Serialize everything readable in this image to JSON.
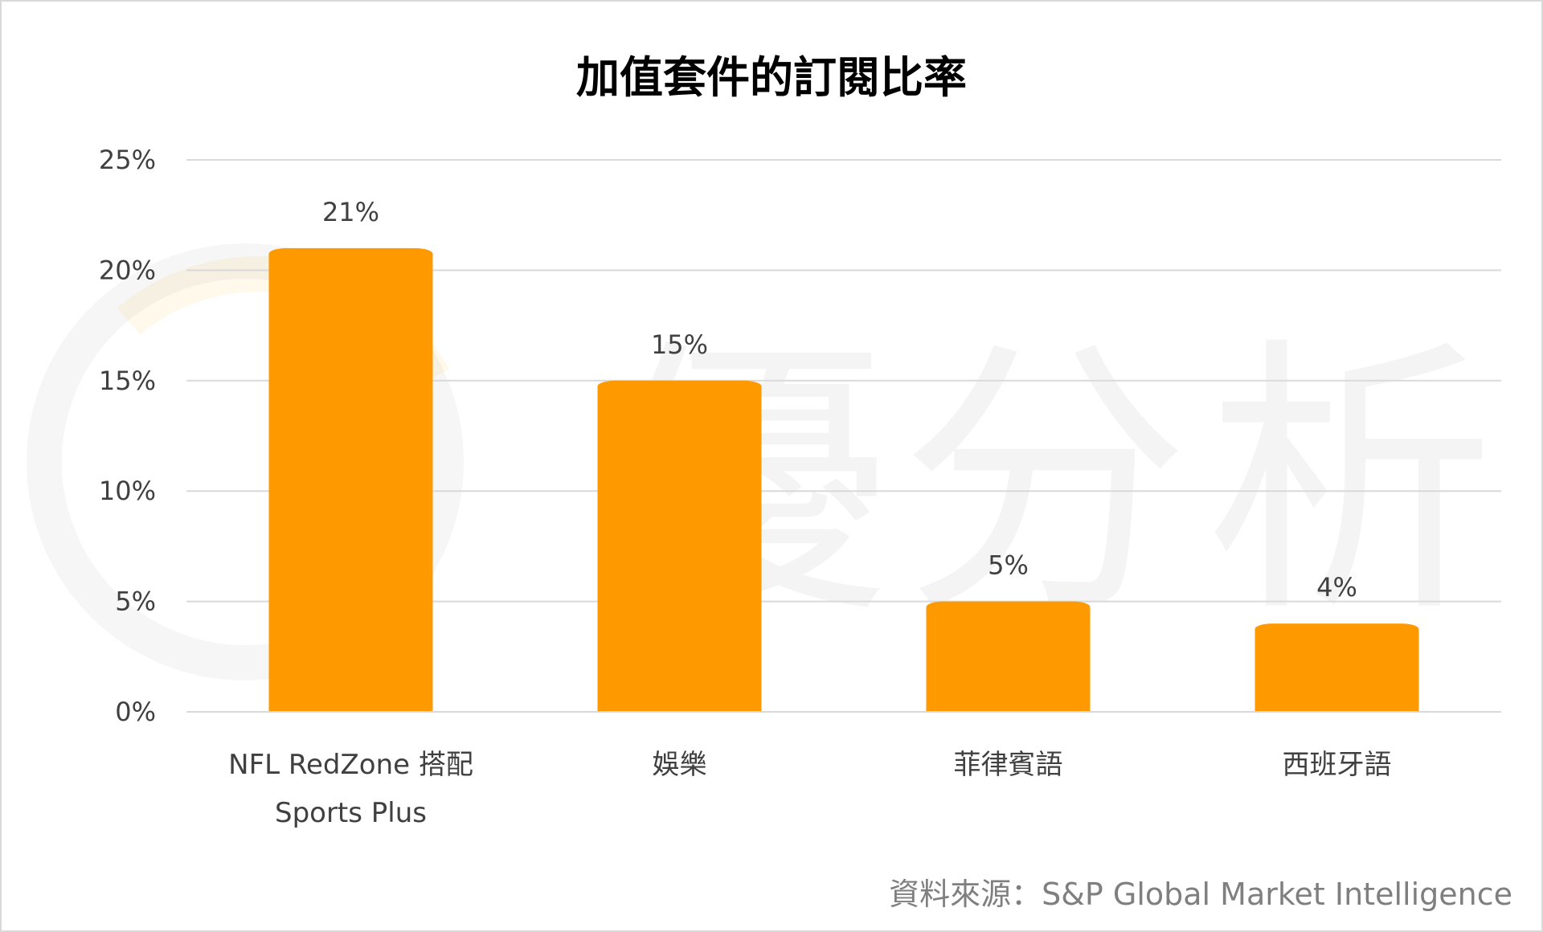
{
  "chart_data": {
    "type": "bar",
    "title": "加值套件的訂閱比率",
    "categories": [
      [
        "NFL RedZone 搭配",
        "Sports Plus"
      ],
      [
        "娛樂"
      ],
      [
        "菲律賓語"
      ],
      [
        "西班牙語"
      ]
    ],
    "values": [
      21,
      15,
      5,
      4
    ],
    "data_labels": [
      "21%",
      "15%",
      "5%",
      "4%"
    ],
    "y_ticks": [
      "0%",
      "5%",
      "10%",
      "15%",
      "20%",
      "25%"
    ],
    "ylim": [
      0,
      25
    ],
    "grid": true,
    "bar_color": "#ff9900",
    "gridline_color": "#d9d9d9"
  },
  "watermark": {
    "text": [
      "優",
      "分",
      "析"
    ],
    "accent_color": "#ffb300"
  },
  "source": "資料來源：S&P Global Market Intelligence"
}
